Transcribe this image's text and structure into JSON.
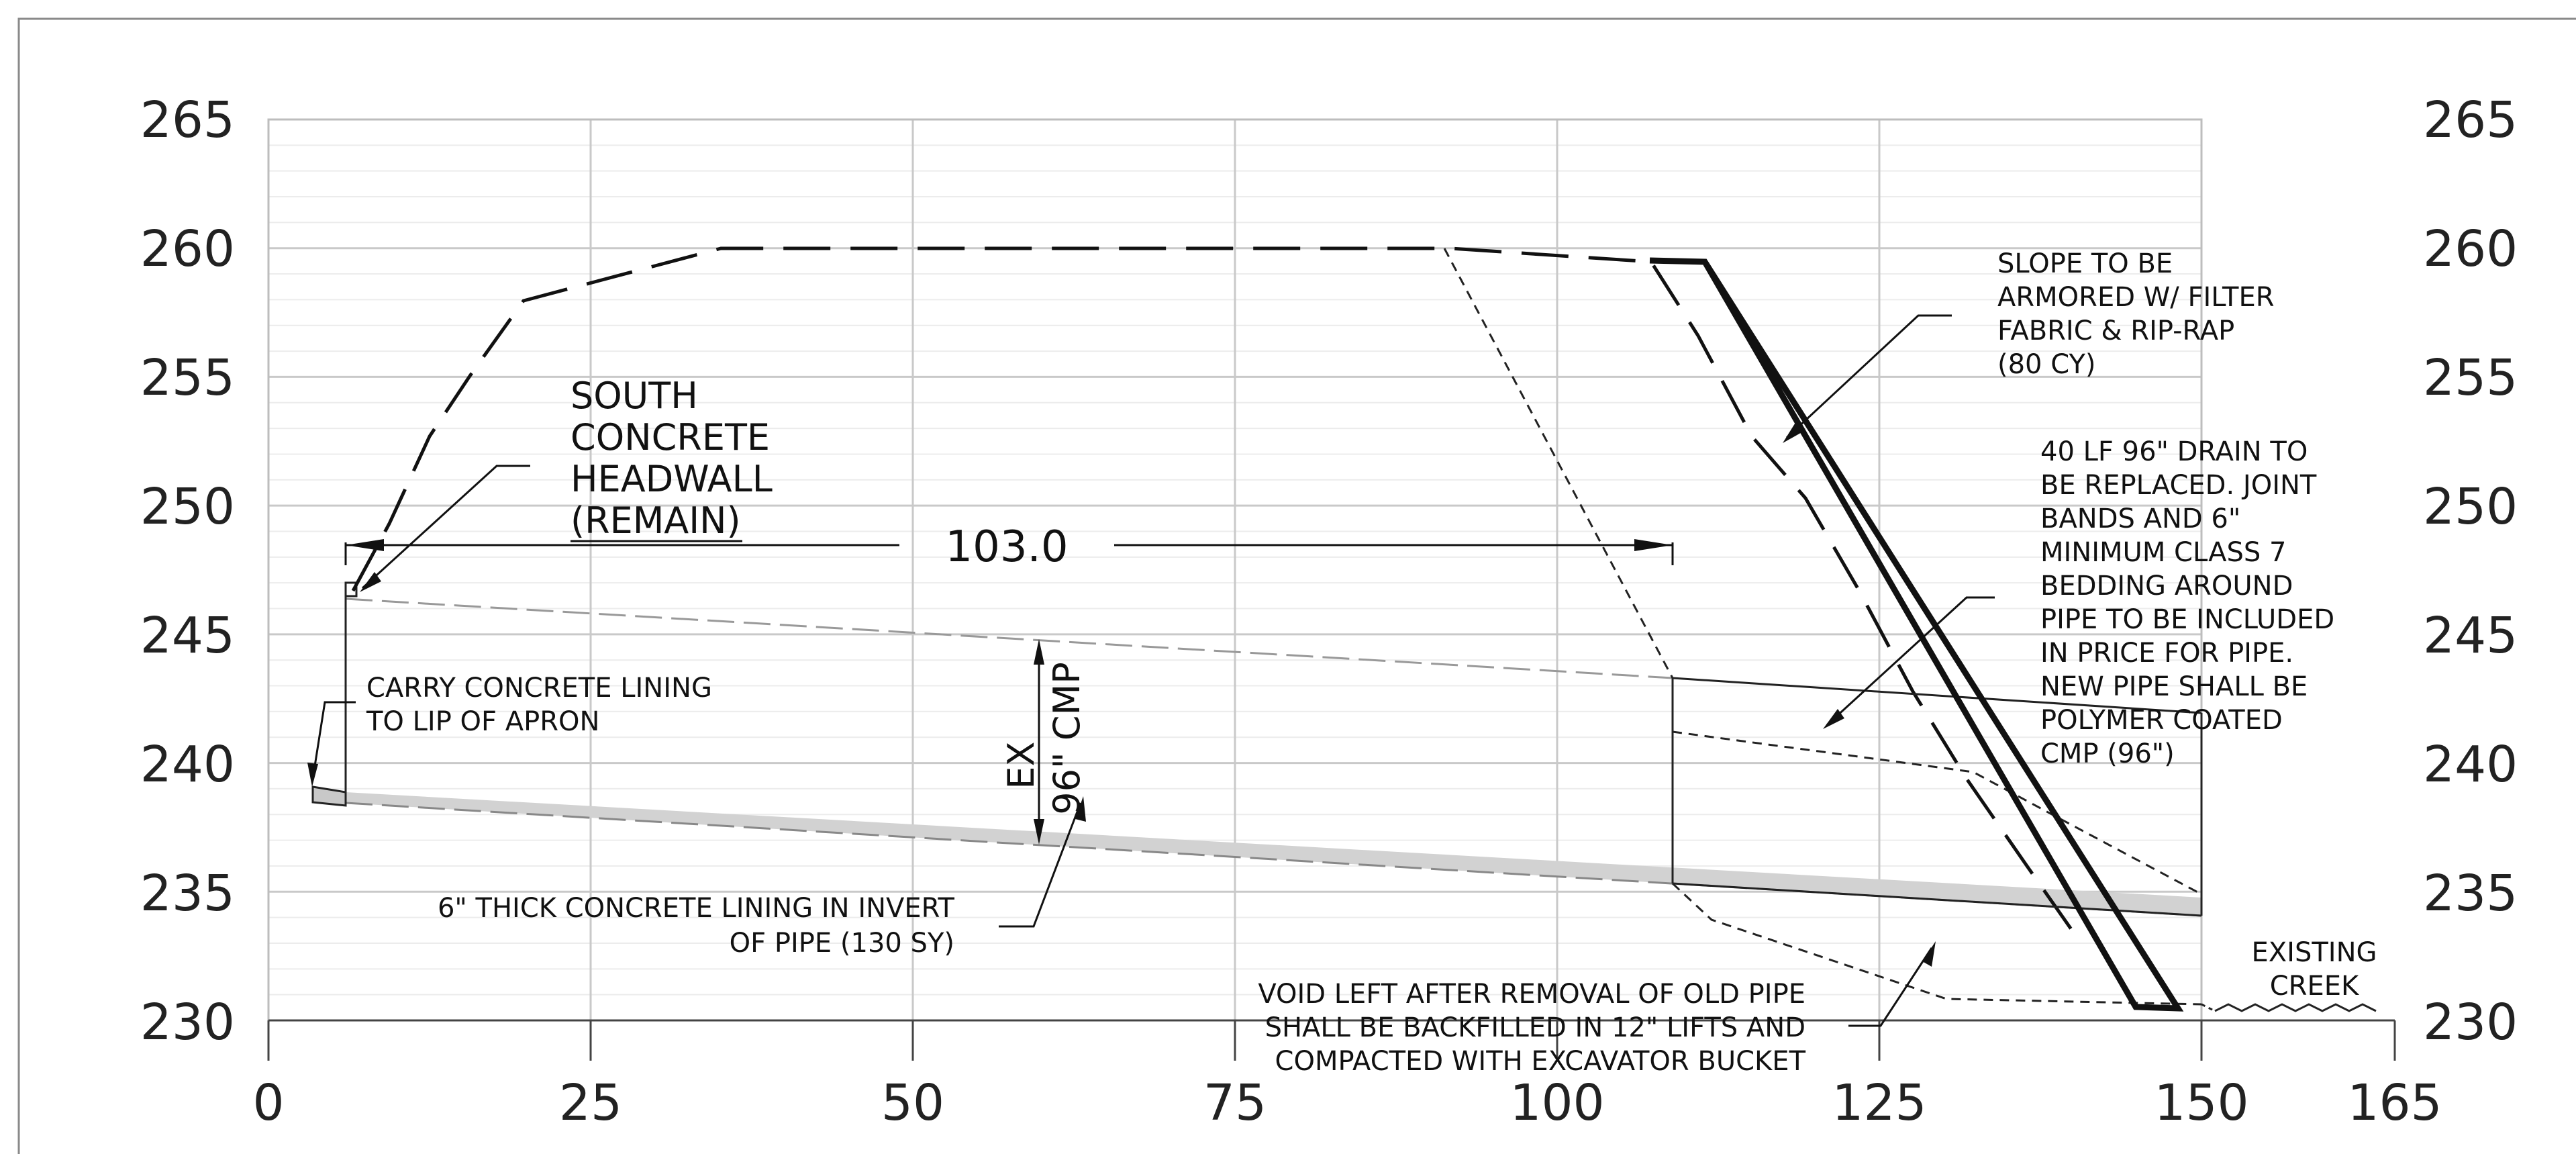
{
  "y_ticks": [
    "265",
    "260",
    "255",
    "250",
    "245",
    "240",
    "235",
    "230"
  ],
  "x_ticks": [
    "0",
    "25",
    "50",
    "75",
    "100",
    "125",
    "150",
    "165"
  ],
  "dimension": {
    "label": "103.0"
  },
  "labels": {
    "headwall": [
      "SOUTH",
      "CONCRETE",
      "HEADWALL",
      "(REMAIN)"
    ],
    "slope": [
      "SLOPE TO BE",
      "ARMORED W/ FILTER",
      "FABRIC & RIP-RAP",
      "(80 CY)"
    ],
    "drain": [
      "40 LF 96\" DRAIN TO",
      "BE REPLACED. JOINT",
      "BANDS AND 6\"",
      "MINIMUM CLASS 7",
      "BEDDING AROUND",
      "PIPE TO BE INCLUDED",
      "IN PRICE FOR PIPE.",
      "NEW PIPE SHALL BE",
      "POLYMER COATED",
      "CMP (96\")"
    ],
    "lining_lip": [
      "CARRY CONCRETE LINING",
      "TO LIP OF APRON"
    ],
    "lining_invert": [
      "6\" THICK CONCRETE LINING IN INVERT",
      "OF PIPE (130 SY)"
    ],
    "ex_pipe": [
      "EX",
      "96\" CMP"
    ],
    "void": [
      "VOID LEFT AFTER REMOVAL OF OLD PIPE",
      "SHALL BE BACKFILLED IN 12\" LIFTS AND",
      "COMPACTED WITH EXCAVATOR BUCKET"
    ],
    "creek": [
      "EXISTING",
      "CREEK"
    ]
  }
}
